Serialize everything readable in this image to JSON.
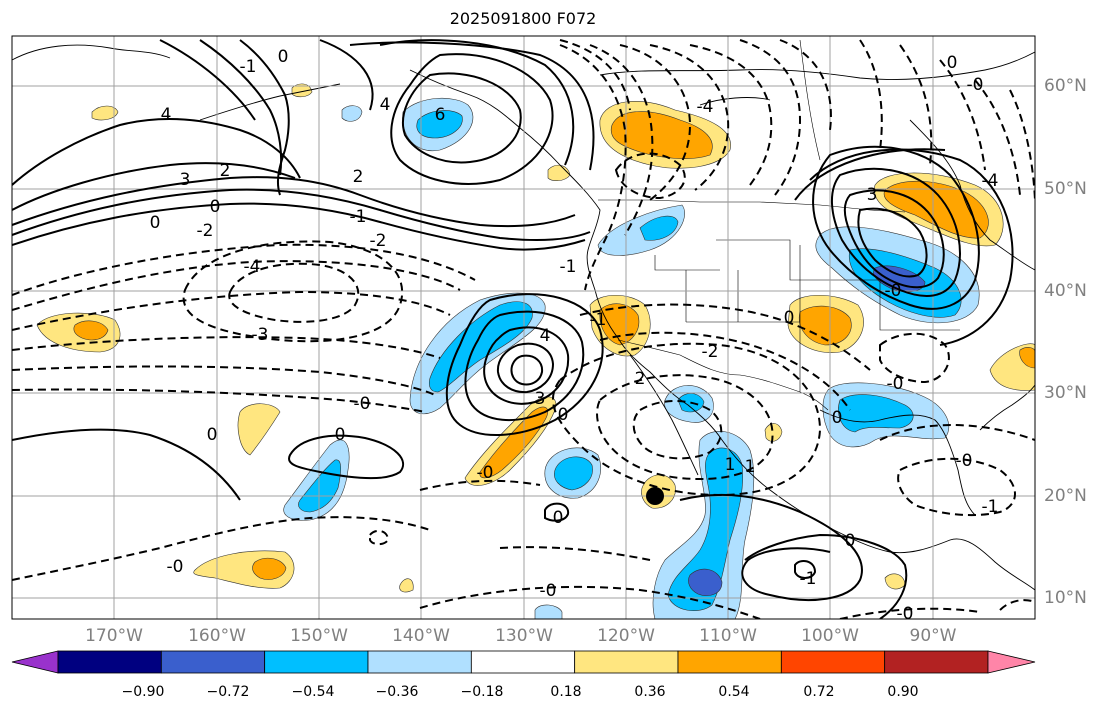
{
  "title": "2025091800 F072",
  "lat_labels": [
    "60°N",
    "50°N",
    "40°N",
    "30°N",
    "20°N",
    "10°N"
  ],
  "lon_labels": [
    "170°W",
    "160°W",
    "150°W",
    "140°W",
    "130°W",
    "120°W",
    "110°W",
    "100°W",
    "90°W"
  ],
  "colorbar": {
    "ticks": [
      "−0.90",
      "−0.72",
      "−0.54",
      "−0.36",
      "−0.18",
      "0.18",
      "0.36",
      "0.54",
      "0.72",
      "0.90"
    ],
    "colors": [
      "#9932cc",
      "#000080",
      "#3a5fcd",
      "#00bfff",
      "#b0e0ff",
      "#ffffff",
      "#ffe680",
      "#ffa500",
      "#ff4500",
      "#b22222",
      "#ff85a8"
    ]
  },
  "contour_labels": [
    {
      "text": "-1"
    },
    {
      "text": "0"
    },
    {
      "text": "4"
    },
    {
      "text": "6"
    },
    {
      "text": "4"
    },
    {
      "text": "-4"
    },
    {
      "text": "3"
    },
    {
      "text": "2"
    },
    {
      "text": "0"
    },
    {
      "text": "-2"
    },
    {
      "text": "0"
    },
    {
      "text": "2"
    },
    {
      "text": "-1"
    },
    {
      "text": "-2"
    },
    {
      "text": "-4"
    },
    {
      "text": "-3"
    },
    {
      "text": "-1"
    },
    {
      "text": "4"
    },
    {
      "text": "3"
    },
    {
      "text": "-2"
    },
    {
      "text": "2"
    },
    {
      "text": "-0"
    },
    {
      "text": "0"
    },
    {
      "text": "0"
    },
    {
      "text": "-0"
    },
    {
      "text": "-1"
    },
    {
      "text": "0"
    },
    {
      "text": "-0"
    },
    {
      "text": "-0"
    },
    {
      "text": "0"
    },
    {
      "text": "-1"
    },
    {
      "text": "-0"
    },
    {
      "text": "3"
    },
    {
      "text": "0"
    },
    {
      "text": "-4"
    },
    {
      "text": "-0"
    },
    {
      "text": "0"
    },
    {
      "text": "-0"
    },
    {
      "text": "-1"
    },
    {
      "text": "0"
    },
    {
      "text": "1"
    },
    {
      "text": "-0"
    },
    {
      "text": "0"
    },
    {
      "text": "1"
    },
    {
      "text": "-0"
    }
  ],
  "colors": {
    "land_line": "#000000",
    "grid": "#a0a0a0",
    "label_gray": "#808080"
  }
}
